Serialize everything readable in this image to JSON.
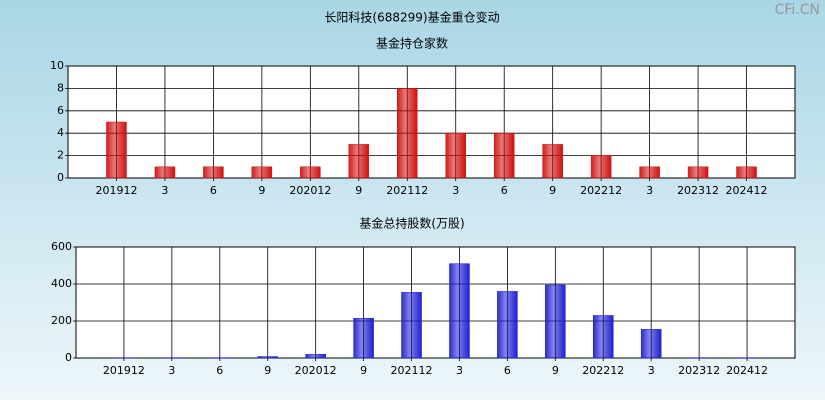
{
  "title": "长阳科技(688299)基金重仓变动",
  "watermark": "CFi.CN",
  "chart_data": [
    {
      "type": "bar",
      "title": "基金持仓家数",
      "categories": [
        "201912",
        "3",
        "6",
        "9",
        "202012",
        "9",
        "202112",
        "3",
        "6",
        "9",
        "202212",
        "3",
        "202312",
        "202412"
      ],
      "values": [
        5,
        1,
        1,
        1,
        1,
        3,
        8,
        4,
        4,
        3,
        2,
        1,
        1,
        1
      ],
      "color": "#d01010",
      "ylim": [
        0,
        10
      ],
      "yticks": [
        0,
        2,
        4,
        6,
        8,
        10
      ],
      "grid": true
    },
    {
      "type": "bar",
      "title": "基金总持股数(万股)",
      "categories": [
        "201912",
        "3",
        "6",
        "9",
        "202012",
        "9",
        "202112",
        "3",
        "6",
        "9",
        "202212",
        "3",
        "202312",
        "202412"
      ],
      "values": [
        2,
        2,
        2,
        8,
        20,
        215,
        355,
        510,
        360,
        395,
        230,
        155,
        2,
        2
      ],
      "color": "#2020d0",
      "ylim": [
        0,
        600
      ],
      "yticks": [
        0,
        200,
        400,
        600
      ],
      "grid": true
    }
  ]
}
